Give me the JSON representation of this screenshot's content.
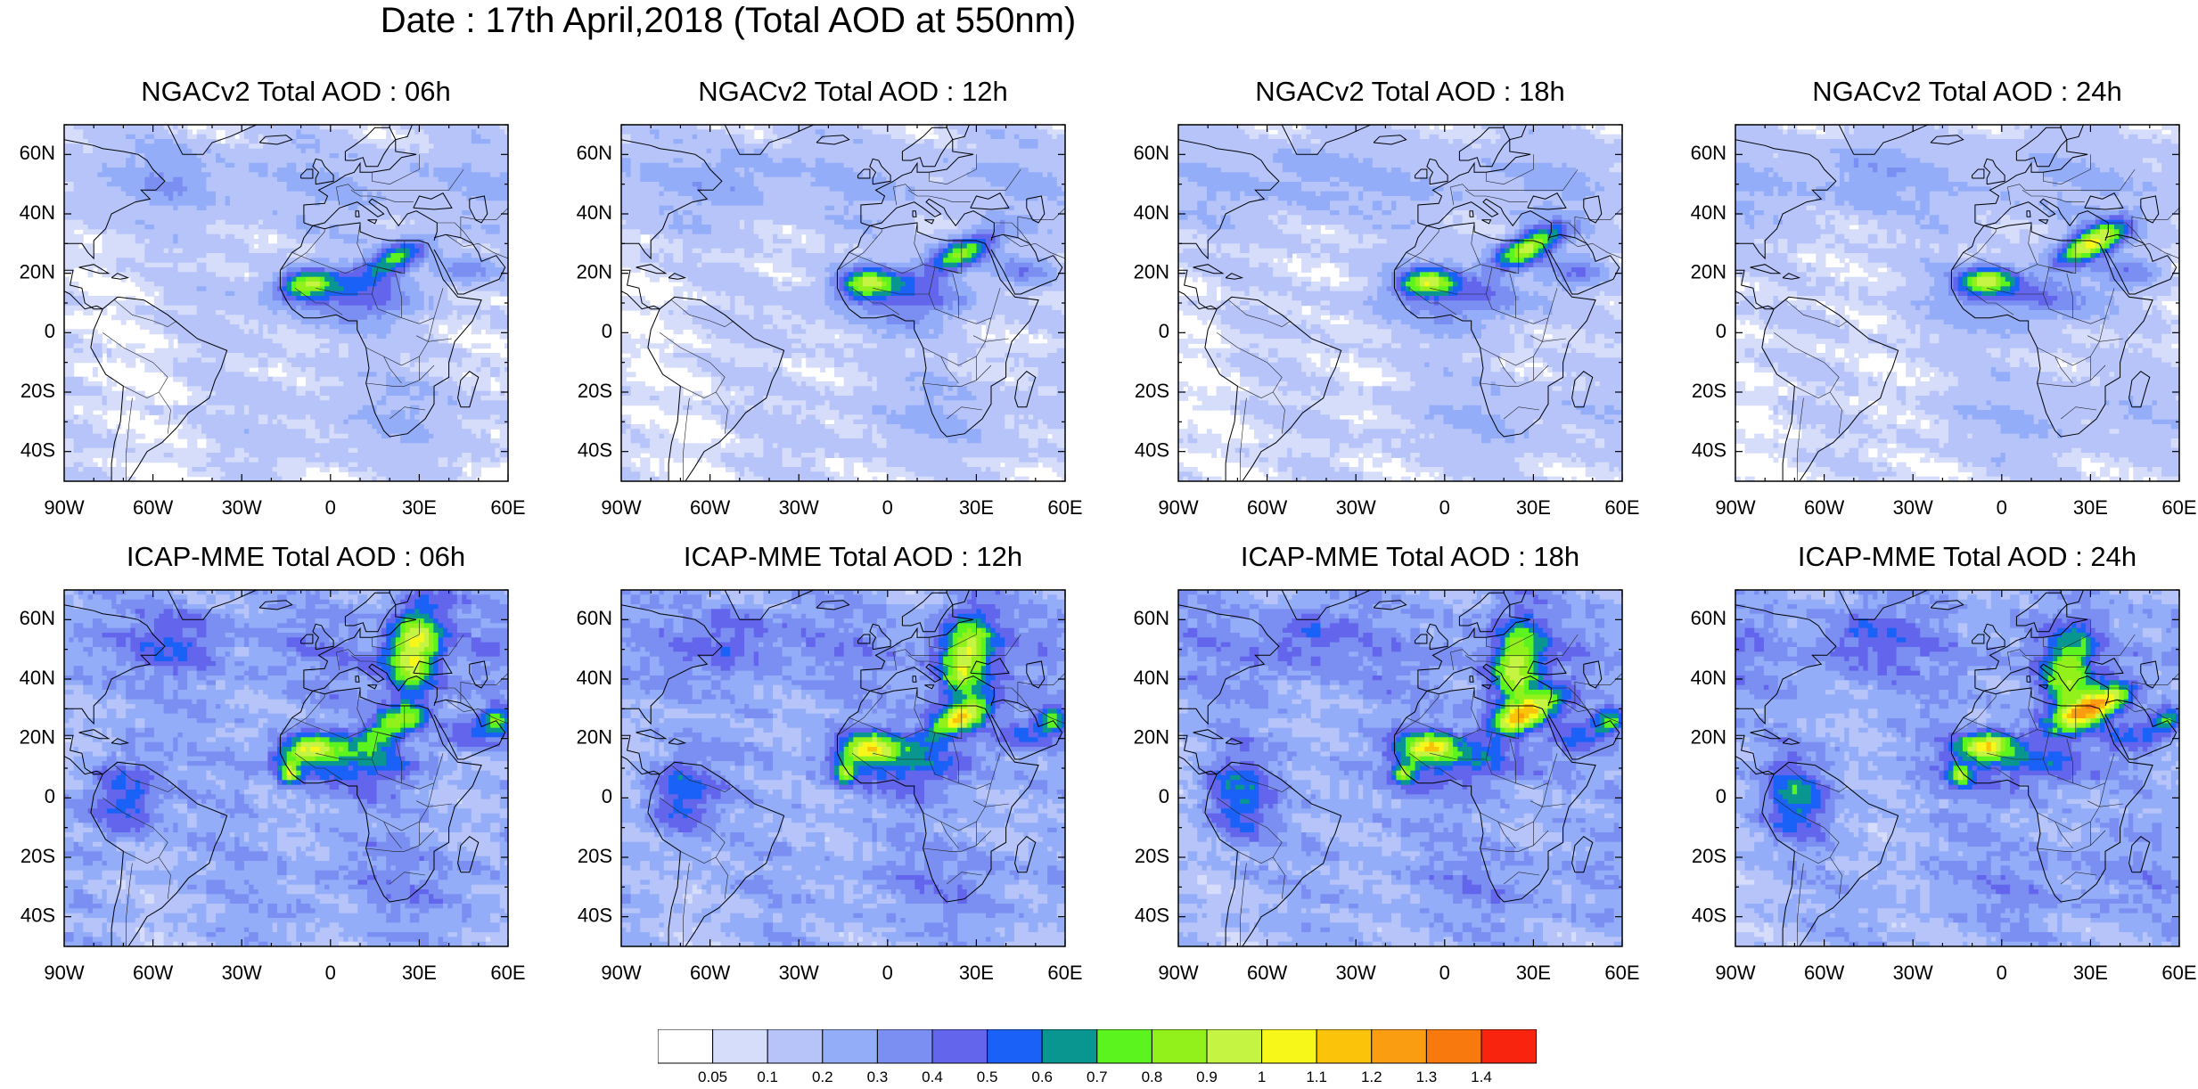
{
  "title": "Date : 17th April,2018 (Total AOD at 550nm)",
  "panels": [
    {
      "title": "NGACv2 Total AOD : 06h",
      "model": "NGACv2",
      "hour": "06h"
    },
    {
      "title": "NGACv2 Total AOD : 12h",
      "model": "NGACv2",
      "hour": "12h"
    },
    {
      "title": "NGACv2 Total AOD : 18h",
      "model": "NGACv2",
      "hour": "18h"
    },
    {
      "title": "NGACv2 Total AOD : 24h",
      "model": "NGACv2",
      "hour": "24h"
    },
    {
      "title": "ICAP-MME Total AOD : 06h",
      "model": "ICAP-MME",
      "hour": "06h"
    },
    {
      "title": "ICAP-MME Total AOD : 12h",
      "model": "ICAP-MME",
      "hour": "12h"
    },
    {
      "title": "ICAP-MME Total AOD : 18h",
      "model": "ICAP-MME",
      "hour": "18h"
    },
    {
      "title": "ICAP-MME Total AOD : 24h",
      "model": "ICAP-MME",
      "hour": "24h"
    }
  ],
  "axes": {
    "lat_range": [
      -50,
      70
    ],
    "lon_range": [
      -90,
      60
    ],
    "lat_ticks": [
      {
        "v": 60,
        "label": "60N"
      },
      {
        "v": 40,
        "label": "40N"
      },
      {
        "v": 20,
        "label": "20N"
      },
      {
        "v": 0,
        "label": "0"
      },
      {
        "v": -20,
        "label": "20S"
      },
      {
        "v": -40,
        "label": "40S"
      }
    ],
    "lon_ticks": [
      {
        "v": -90,
        "label": "90W"
      },
      {
        "v": -60,
        "label": "60W"
      },
      {
        "v": -30,
        "label": "30W"
      },
      {
        "v": 0,
        "label": "0"
      },
      {
        "v": 30,
        "label": "30E"
      },
      {
        "v": 60,
        "label": "60E"
      }
    ]
  },
  "colorbar": {
    "colors": [
      "#ffffff",
      "#d6ddfb",
      "#b6c4fa",
      "#94adf9",
      "#7b8ff2",
      "#6366ec",
      "#1a61f7",
      "#0a9690",
      "#5cf41f",
      "#93f11b",
      "#c5f542",
      "#f7f71a",
      "#fbc30a",
      "#fb9d11",
      "#f87a0e",
      "#f8240e"
    ],
    "labels": [
      "0.05",
      "0.1",
      "0.2",
      "0.3",
      "0.4",
      "0.5",
      "0.6",
      "0.7",
      "0.8",
      "0.9",
      "1",
      "1.1",
      "1.2",
      "1.3",
      "1.4"
    ]
  }
}
